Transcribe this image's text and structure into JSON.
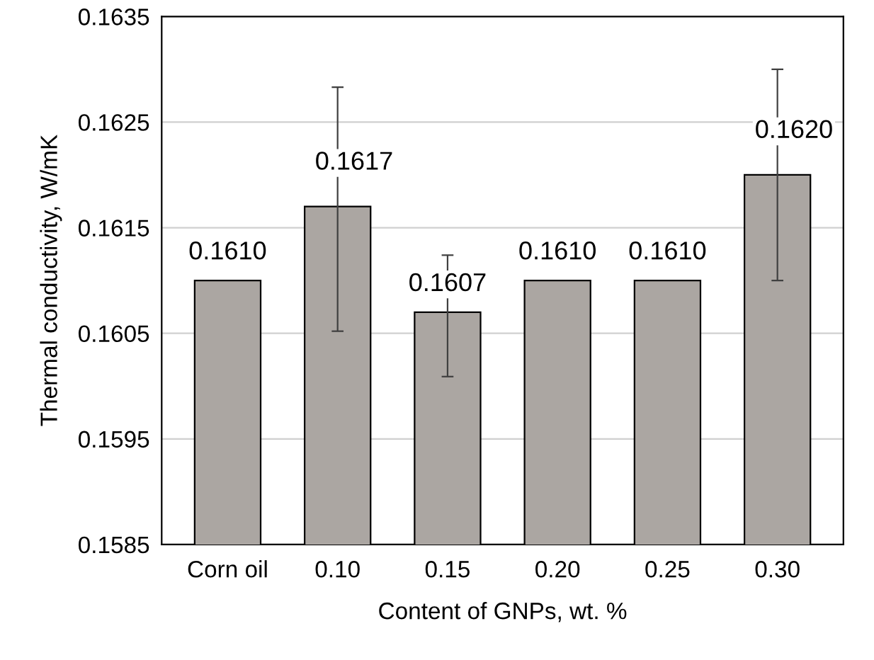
{
  "chart_data": {
    "type": "bar",
    "xlabel": "Content of GNPs, wt. %",
    "ylabel": "Thermal conductivity, W/mK",
    "categories": [
      "Corn oil",
      "0.10",
      "0.15",
      "0.20",
      "0.25",
      "0.30"
    ],
    "values": [
      0.161,
      0.1617,
      0.1607,
      0.161,
      0.161,
      0.162
    ],
    "value_labels": [
      "0.1610",
      "0.1617",
      "0.1607",
      "0.1610",
      "0.1610",
      "0.1620"
    ],
    "errors": [
      null,
      [
        0.16052,
        0.16283
      ],
      [
        0.16009,
        0.16124
      ],
      null,
      null,
      [
        0.161,
        0.163
      ]
    ],
    "color": "#aba6a2",
    "ylim": [
      0.1585,
      0.1635
    ],
    "yticks": [
      {
        "value": 0.1585,
        "label": "0.1585"
      },
      {
        "value": 0.1595,
        "label": "0.1595"
      },
      {
        "value": 0.1605,
        "label": "0.1605"
      },
      {
        "value": 0.1615,
        "label": "0.1615"
      },
      {
        "value": 0.1625,
        "label": "0.1625"
      },
      {
        "value": 0.1635,
        "label": "0.1635"
      }
    ],
    "grid": "y",
    "legend": false
  }
}
